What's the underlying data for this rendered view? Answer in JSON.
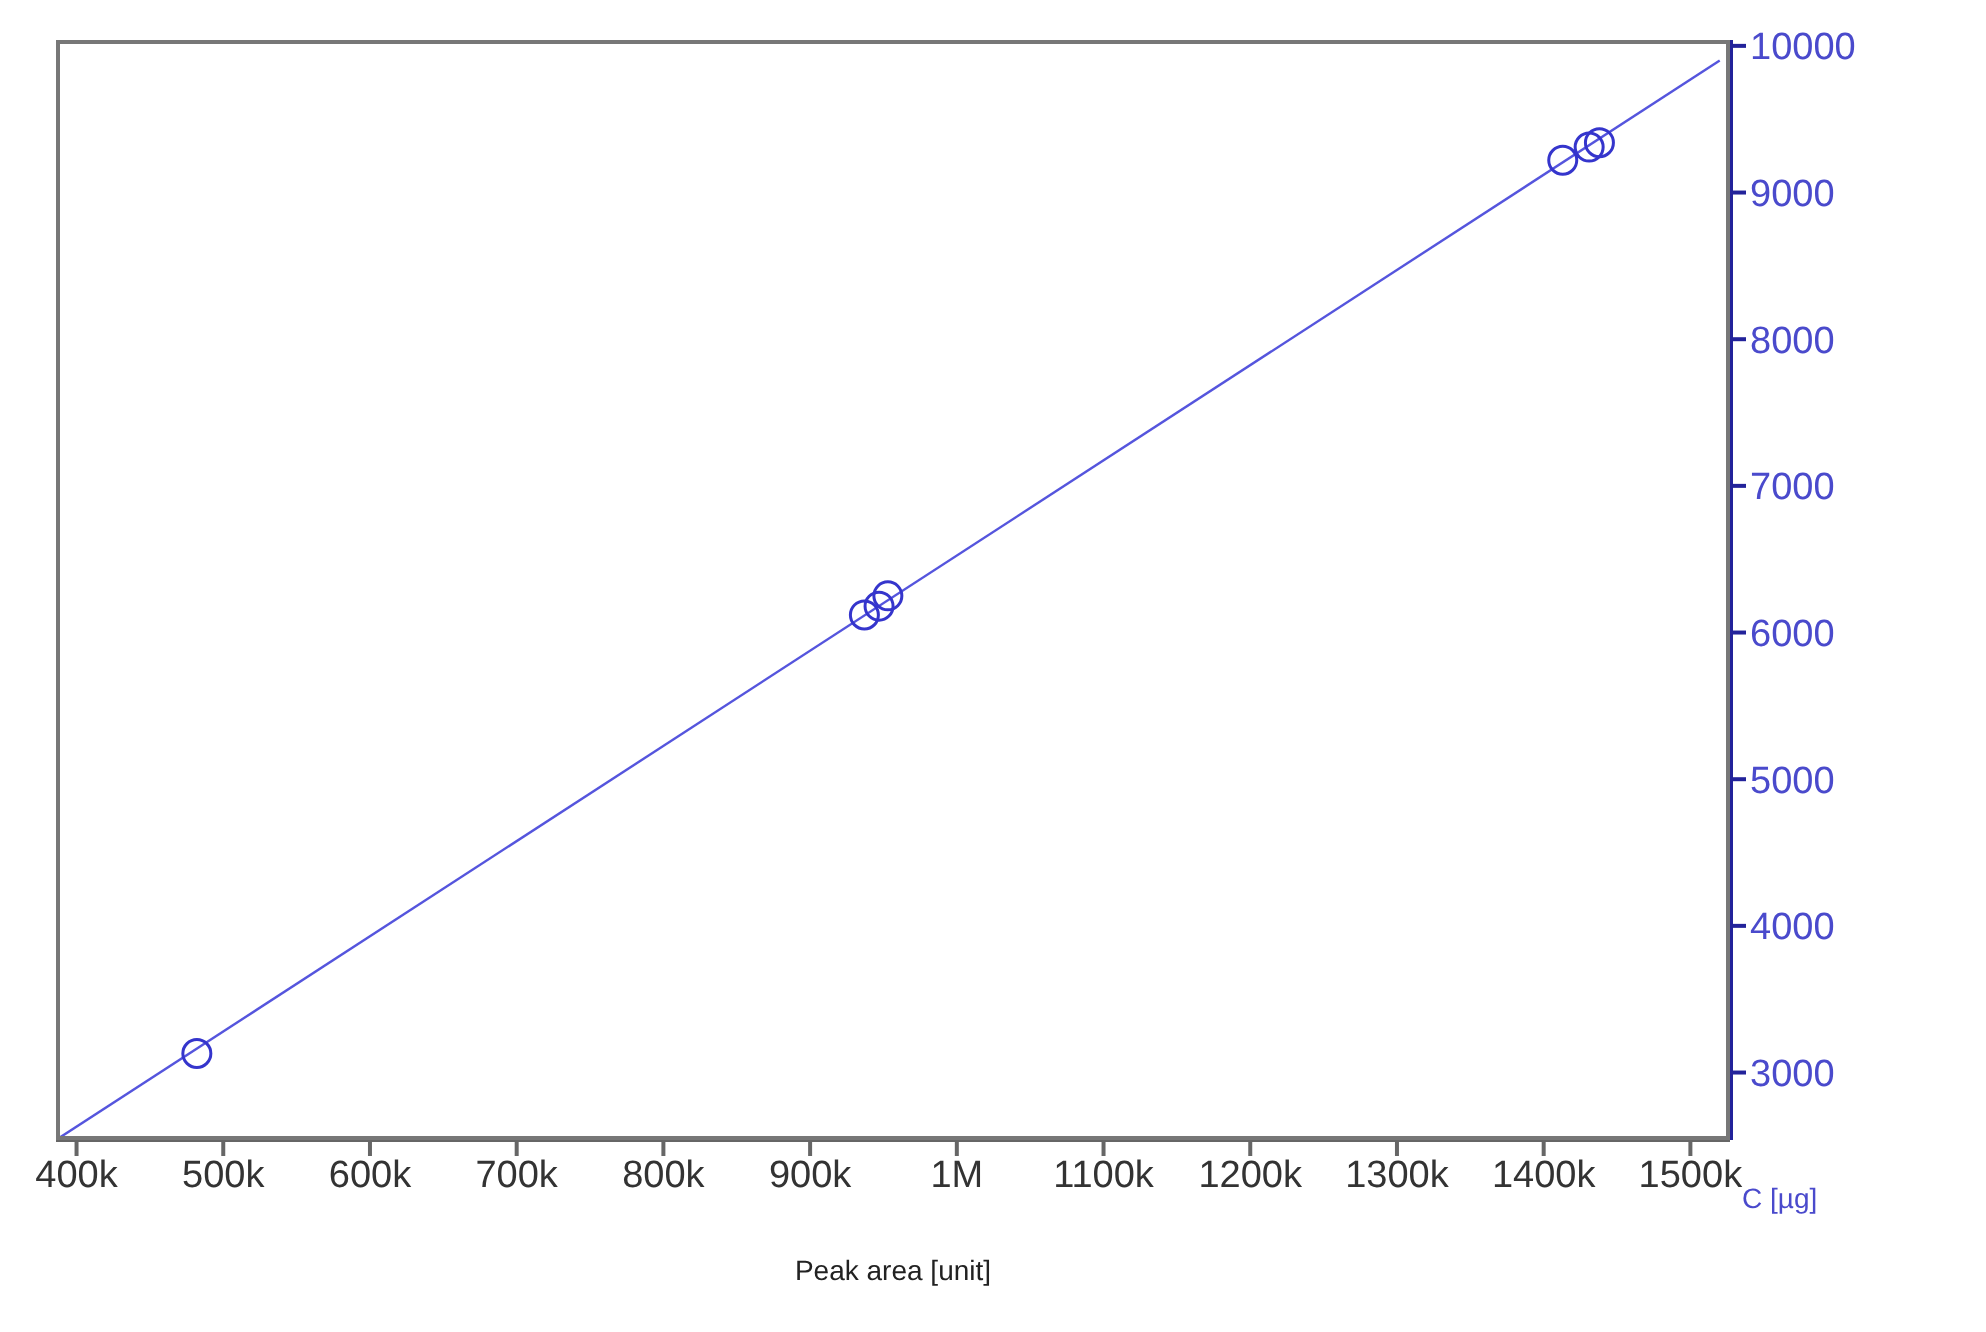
{
  "chart_data": {
    "type": "scatter",
    "xlabel": "Peak area [unit]",
    "ylabel": "C [µg]",
    "xlim": [
      386000,
      1527000
    ],
    "ylim": [
      2540,
      10040
    ],
    "xticks": [
      {
        "value": 400000,
        "label": "400k"
      },
      {
        "value": 500000,
        "label": "500k"
      },
      {
        "value": 600000,
        "label": "600k"
      },
      {
        "value": 700000,
        "label": "700k"
      },
      {
        "value": 800000,
        "label": "800k"
      },
      {
        "value": 900000,
        "label": "900k"
      },
      {
        "value": 1000000,
        "label": "1M"
      },
      {
        "value": 1100000,
        "label": "1100k"
      },
      {
        "value": 1200000,
        "label": "1200k"
      },
      {
        "value": 1300000,
        "label": "1300k"
      },
      {
        "value": 1400000,
        "label": "1400k"
      },
      {
        "value": 1500000,
        "label": "1500k"
      }
    ],
    "yticks": [
      3000,
      4000,
      5000,
      6000,
      7000,
      8000,
      9000,
      10000
    ],
    "grid": false,
    "legend": false,
    "series": [
      {
        "color": "#3535cc",
        "marker": "circle",
        "x": [
          482000,
          937000,
          947000,
          953000,
          1413000,
          1431000,
          1438000
        ],
        "values": [
          3130,
          6120,
          6180,
          6250,
          9220,
          9310,
          9340
        ]
      },
      {
        "type": "line",
        "marker": "none",
        "color": "#5555dd",
        "x": [
          386000,
          1520000
        ],
        "values": [
          2540,
          9900
        ]
      }
    ]
  }
}
